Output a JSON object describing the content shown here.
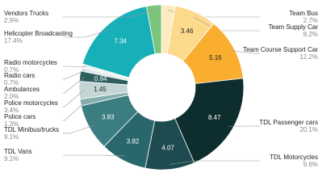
{
  "chart_data": {
    "type": "donut",
    "categories": [
      "Team Bus",
      "Team Supply Car",
      "Team Course Support Car",
      "TDL Passenger cars",
      "TDL Motorcycles",
      "TDL Vans",
      "TDL Minibus/trucks",
      "Police cars",
      "Police motorcycles",
      "Ambulances",
      "Radio cars",
      "Radio motorcycles",
      "Helicopter Broadcasting",
      "Vendors Trucks"
    ],
    "values": [
      1.14,
      3.46,
      5.16,
      8.47,
      4.07,
      3.82,
      3.83,
      0.55,
      1.45,
      0.84,
      0.3,
      0.3,
      7.34,
      1.22
    ],
    "value_labels": [
      null,
      "3.46",
      "5.16",
      "8.47",
      "4.07",
      "3.82",
      "3.83",
      null,
      "1.45",
      "0.84",
      null,
      null,
      "7.34",
      null
    ],
    "percent_labels": [
      "2.7%",
      "8.2%",
      "12.2%",
      "20.1%",
      "9.6%",
      "9.1%",
      "9.1%",
      "1.3%",
      "3.4%",
      "2.0%",
      "0.7%",
      "0.7%",
      "17.4%",
      "2.9%"
    ],
    "colors": [
      "#fdebc0",
      "#fdd98c",
      "#f9ae30",
      "#0e2d2e",
      "#1d4b50",
      "#2a676c",
      "#3c7d82",
      "#86aeae",
      "#c3d6d5",
      "#2e5f60",
      "#dde8e7",
      "#eaf1f0",
      "#18b0b8",
      "#7cc47c"
    ]
  }
}
